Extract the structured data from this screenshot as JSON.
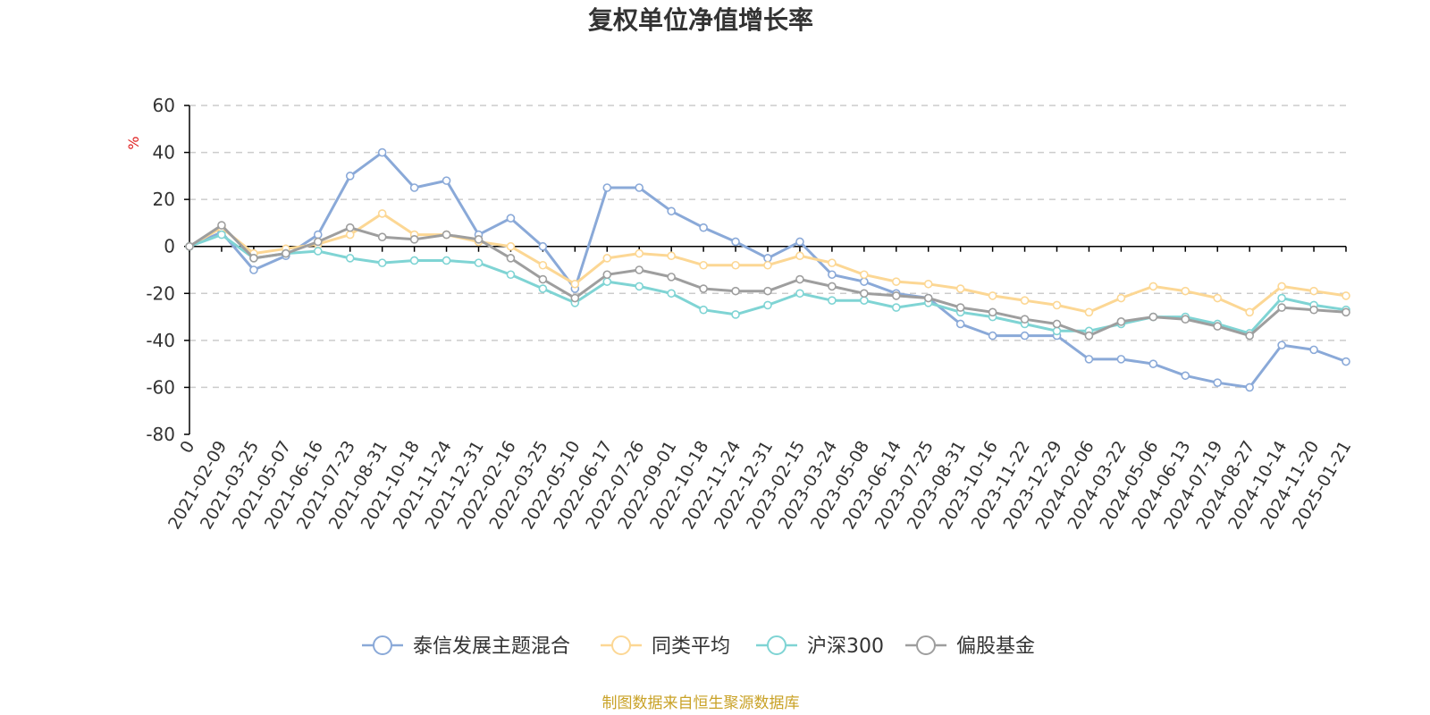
{
  "chart_data": {
    "type": "line",
    "title": "复权单位净值增长率",
    "ylabel": "%",
    "ylim": [
      -80,
      60
    ],
    "yticks": [
      60,
      40,
      20,
      0,
      -20,
      -40,
      -60,
      -80
    ],
    "grid": true,
    "legend_position": "bottom",
    "x": [
      "0",
      "2021-02-09",
      "2021-03-25",
      "2021-05-07",
      "2021-06-16",
      "2021-07-23",
      "2021-08-31",
      "2021-10-18",
      "2021-11-24",
      "2021-12-31",
      "2022-02-16",
      "2022-03-25",
      "2022-05-10",
      "2022-06-17",
      "2022-07-26",
      "2022-09-01",
      "2022-10-18",
      "2022-11-24",
      "2022-12-31",
      "2023-02-15",
      "2023-03-24",
      "2023-05-08",
      "2023-06-14",
      "2023-07-25",
      "2023-08-31",
      "2023-10-16",
      "2023-11-22",
      "2023-12-29",
      "2024-02-06",
      "2024-03-22",
      "2024-05-06",
      "2024-06-13",
      "2024-07-19",
      "2024-08-27",
      "2024-10-14",
      "2024-11-20",
      "2025-01-21"
    ],
    "series": [
      {
        "name": "泰信发展主题混合",
        "color": "#8aa9d8",
        "values": [
          0,
          6,
          -10,
          -4,
          5,
          30,
          40,
          25,
          28,
          5,
          12,
          0,
          -18,
          25,
          25,
          15,
          8,
          2,
          -5,
          2,
          -12,
          -15,
          -20,
          -22,
          -33,
          -38,
          -38,
          -38,
          -48,
          -48,
          -50,
          -55,
          -58,
          -60,
          -42,
          -44,
          -49
        ]
      },
      {
        "name": "同类平均",
        "color": "#fcd794",
        "values": [
          0,
          8,
          -3,
          -1,
          1,
          5,
          14,
          5,
          5,
          2,
          0,
          -8,
          -16,
          -5,
          -3,
          -4,
          -8,
          -8,
          -8,
          -4,
          -7,
          -12,
          -15,
          -16,
          -18,
          -21,
          -23,
          -25,
          -28,
          -22,
          -17,
          -19,
          -22,
          -28,
          -17,
          -19,
          -21
        ]
      },
      {
        "name": "沪深300",
        "color": "#7fd4d4",
        "values": [
          0,
          5,
          -5,
          -3,
          -2,
          -5,
          -7,
          -6,
          -6,
          -7,
          -12,
          -18,
          -24,
          -15,
          -17,
          -20,
          -27,
          -29,
          -25,
          -20,
          -23,
          -23,
          -26,
          -24,
          -28,
          -30,
          -33,
          -36,
          -36,
          -33,
          -30,
          -30,
          -33,
          -37,
          -22,
          -25,
          -27
        ]
      },
      {
        "name": "偏股基金",
        "color": "#9e9e9e",
        "values": [
          0,
          9,
          -5,
          -3,
          2,
          8,
          4,
          3,
          5,
          3,
          -5,
          -14,
          -22,
          -12,
          -10,
          -13,
          -18,
          -19,
          -19,
          -14,
          -17,
          -20,
          -21,
          -22,
          -26,
          -28,
          -31,
          -33,
          -38,
          -32,
          -30,
          -31,
          -34,
          -38,
          -26,
          -27,
          -28
        ]
      }
    ]
  },
  "source_note": "制图数据来自恒生聚源数据库",
  "colors": {
    "axis": "#000000",
    "grid": "#cccccc",
    "unit_label": "#e02020",
    "source_note": "#c9a227"
  }
}
